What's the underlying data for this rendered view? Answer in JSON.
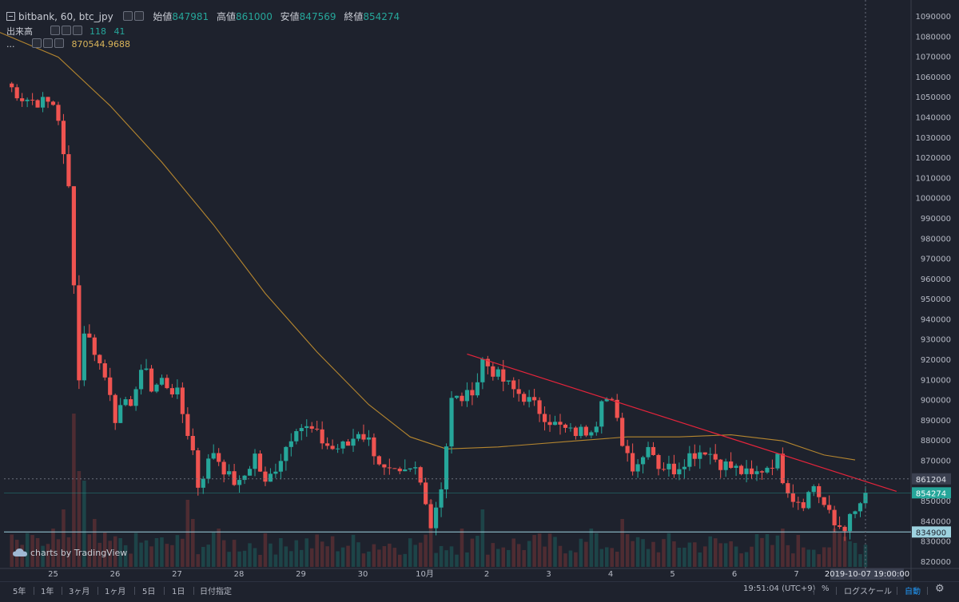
{
  "legend": {
    "symbol": "bitbank, 60, btc_jpy",
    "open_label": "始値",
    "open_value": "847981",
    "high_label": "高値",
    "high_value": "861000",
    "low_label": "安値",
    "low_value": "847569",
    "close_label": "終値",
    "close_value": "854274",
    "volume_label": "出来高",
    "volume_v1": "118",
    "volume_v2": "41",
    "ma_label": "...",
    "ma_value": "870544.9688"
  },
  "watermark": "charts by TradingView",
  "bottom_bar": {
    "ranges": [
      "5年",
      "1年",
      "3ヶ月",
      "1ヶ月",
      "5日",
      "1日",
      "日付指定"
    ],
    "time": "19:51:04 (UTC+9)",
    "percent": "%",
    "log_scale": "ログスケール",
    "auto": "自動",
    "settings_icon": "gear-icon"
  },
  "colors": {
    "background": "#1e222d",
    "up": "#26a69a",
    "down": "#ef5350",
    "ma": "#b5862f",
    "trend": "#e5243b",
    "support": "#9ed3e0"
  },
  "chart_data": {
    "type": "candlestick",
    "symbol": "bitbank, 60, btc_jpy",
    "ylim": [
      815000,
      1095000
    ],
    "y_ticks": [
      820000,
      830000,
      840000,
      850000,
      860000,
      870000,
      880000,
      890000,
      900000,
      910000,
      920000,
      930000,
      940000,
      950000,
      960000,
      970000,
      980000,
      990000,
      1000000,
      1010000,
      1020000,
      1030000,
      1040000,
      1050000,
      1060000,
      1070000,
      1080000,
      1090000
    ],
    "x_ticks": [
      "25",
      "26",
      "27",
      "28",
      "29",
      "30",
      "10月",
      "2",
      "3",
      "4",
      "5",
      "6",
      "7"
    ],
    "crosshair_date": "2019-10-07 19:00:00",
    "price_labels": {
      "crosshair": "861204",
      "last": "854274",
      "support": "834900"
    },
    "price_path": [
      [
        0,
        1057000
      ],
      [
        3,
        1050000
      ],
      [
        6,
        1048000
      ],
      [
        9,
        1047000
      ],
      [
        10,
        1040000
      ],
      [
        11,
        1020000
      ],
      [
        12,
        1005000
      ],
      [
        13,
        960000
      ],
      [
        14,
        910000
      ],
      [
        15,
        935000
      ],
      [
        17,
        925000
      ],
      [
        18,
        918000
      ],
      [
        20,
        905000
      ],
      [
        21,
        892000
      ],
      [
        24,
        900000
      ],
      [
        27,
        918000
      ],
      [
        28,
        905000
      ],
      [
        30,
        910000
      ],
      [
        33,
        903000
      ],
      [
        36,
        875000
      ],
      [
        37,
        858000
      ],
      [
        40,
        875000
      ],
      [
        43,
        862000
      ],
      [
        45,
        858000
      ],
      [
        48,
        873000
      ],
      [
        50,
        858000
      ],
      [
        53,
        872000
      ],
      [
        56,
        888000
      ],
      [
        59,
        885000
      ],
      [
        61,
        880000
      ],
      [
        63,
        876000
      ],
      [
        66,
        878000
      ],
      [
        68,
        885000
      ],
      [
        70,
        880000
      ],
      [
        73,
        865000
      ],
      [
        76,
        862000
      ],
      [
        79,
        866000
      ],
      [
        81,
        852000
      ],
      [
        82,
        838000
      ],
      [
        84,
        858000
      ],
      [
        85,
        878000
      ],
      [
        86,
        900000
      ],
      [
        89,
        902000
      ],
      [
        91,
        910000
      ],
      [
        92,
        920000
      ],
      [
        95,
        912000
      ],
      [
        98,
        905000
      ],
      [
        100,
        902000
      ],
      [
        103,
        895000
      ],
      [
        106,
        888000
      ],
      [
        109,
        884000
      ],
      [
        112,
        885000
      ],
      [
        114,
        890000
      ],
      [
        115,
        903000
      ],
      [
        117,
        898000
      ],
      [
        119,
        880000
      ],
      [
        121,
        868000
      ],
      [
        123,
        872000
      ],
      [
        124,
        880000
      ],
      [
        126,
        868000
      ],
      [
        129,
        866000
      ],
      [
        132,
        873000
      ],
      [
        135,
        876000
      ],
      [
        138,
        869000
      ],
      [
        141,
        866000
      ],
      [
        144,
        862000
      ],
      [
        146,
        866000
      ],
      [
        149,
        871000
      ],
      [
        150,
        862000
      ],
      [
        152,
        852000
      ],
      [
        154,
        850000
      ],
      [
        156,
        858000
      ],
      [
        158,
        848000
      ],
      [
        160,
        838000
      ],
      [
        162,
        838000
      ],
      [
        164,
        844000
      ],
      [
        166,
        854274
      ]
    ],
    "ma": [
      [
        -2,
        1083000
      ],
      [
        10,
        1070000
      ],
      [
        20,
        1046000
      ],
      [
        30,
        1018000
      ],
      [
        40,
        987000
      ],
      [
        50,
        953000
      ],
      [
        60,
        924000
      ],
      [
        70,
        898000
      ],
      [
        78,
        882000
      ],
      [
        85,
        876000
      ],
      [
        95,
        877000
      ],
      [
        110,
        880000
      ],
      [
        120,
        882000
      ],
      [
        130,
        882000
      ],
      [
        140,
        883000
      ],
      [
        150,
        880000
      ],
      [
        158,
        873000
      ],
      [
        164,
        870545
      ]
    ],
    "trendline": [
      [
        89,
        923000
      ],
      [
        172,
        855000
      ]
    ],
    "support_line": 834900,
    "volume": [
      [
        6,
        3
      ],
      [
        9,
        4
      ],
      [
        11,
        6
      ],
      [
        13,
        16
      ],
      [
        14,
        10
      ],
      [
        15,
        9
      ],
      [
        17,
        5
      ],
      [
        22,
        3
      ],
      [
        35,
        7
      ],
      [
        36,
        5
      ],
      [
        41,
        4
      ],
      [
        53,
        3
      ],
      [
        82,
        7
      ],
      [
        88,
        4
      ],
      [
        92,
        6
      ],
      [
        113,
        4
      ],
      [
        119,
        5
      ],
      [
        150,
        4
      ],
      [
        160,
        4
      ]
    ],
    "volume_base": 3
  }
}
